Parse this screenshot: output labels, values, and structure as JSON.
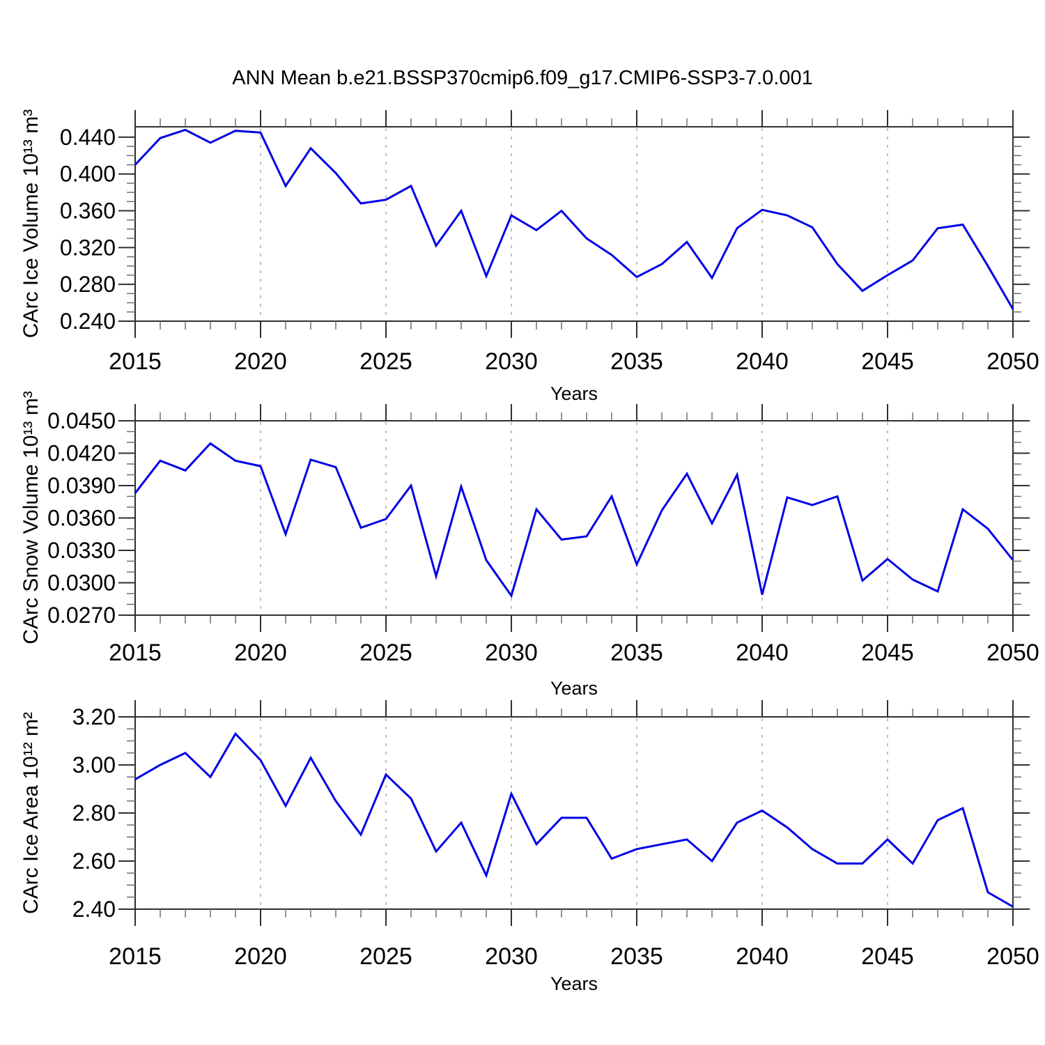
{
  "title": "ANN Mean b.e21.BSSP370cmip6.f09_g17.CMIP6-SSP3-7.0.001",
  "line_color": "#0000e8",
  "grid_color": "#a8a8a8",
  "axis_color": "#2f2f2f",
  "minor_tick_color": "#6e6e6e",
  "chart_data": [
    {
      "id": "ice-volume",
      "type": "line",
      "xlabel": "Years",
      "ylabel": "CArc Ice Volume 10¹³ m³",
      "x": [
        2015,
        2016,
        2017,
        2018,
        2019,
        2020,
        2021,
        2022,
        2023,
        2024,
        2025,
        2026,
        2027,
        2028,
        2029,
        2030,
        2031,
        2032,
        2033,
        2034,
        2035,
        2036,
        2037,
        2038,
        2039,
        2040,
        2041,
        2042,
        2043,
        2044,
        2045,
        2046,
        2047,
        2048,
        2049,
        2050
      ],
      "values": [
        0.41,
        0.439,
        0.448,
        0.434,
        0.447,
        0.445,
        0.387,
        0.428,
        0.401,
        0.368,
        0.372,
        0.387,
        0.322,
        0.36,
        0.289,
        0.355,
        0.339,
        0.36,
        0.33,
        0.312,
        0.288,
        0.302,
        0.326,
        0.287,
        0.341,
        0.361,
        0.355,
        0.342,
        0.302,
        0.273,
        0.29,
        0.306,
        0.341,
        0.345,
        0.3,
        0.253
      ],
      "ylim": [
        0.24,
        0.4513
      ],
      "y_ticks": [
        0.24,
        0.28,
        0.32,
        0.36,
        0.4,
        0.44
      ],
      "y_tick_labels": [
        "0.240",
        "0.280",
        "0.320",
        "0.360",
        "0.400",
        "0.440"
      ],
      "y_minor_step": 0.01,
      "xlim": [
        2015,
        2050
      ],
      "x_ticks": [
        2015,
        2020,
        2025,
        2030,
        2035,
        2040,
        2045,
        2050
      ],
      "x_tick_labels": [
        "2015",
        "2020",
        "2025",
        "2030",
        "2035",
        "2040",
        "2045",
        "2050"
      ],
      "x_minor_step": 1,
      "x_grid": [
        2020,
        2025,
        2030,
        2035,
        2040,
        2045
      ],
      "grid": "vertical-dashed",
      "legend": "none"
    },
    {
      "id": "snow-volume",
      "type": "line",
      "xlabel": "Years",
      "ylabel": "CArc Snow Volume 10¹³ m³",
      "x": [
        2015,
        2016,
        2017,
        2018,
        2019,
        2020,
        2021,
        2022,
        2023,
        2024,
        2025,
        2026,
        2027,
        2028,
        2029,
        2030,
        2031,
        2032,
        2033,
        2034,
        2035,
        2036,
        2037,
        2038,
        2039,
        2040,
        2041,
        2042,
        2043,
        2044,
        2045,
        2046,
        2047,
        2048,
        2049,
        2050
      ],
      "values": [
        0.0383,
        0.0413,
        0.0404,
        0.0429,
        0.0413,
        0.0408,
        0.0345,
        0.0414,
        0.0407,
        0.0351,
        0.0359,
        0.039,
        0.0306,
        0.0389,
        0.0321,
        0.0288,
        0.0368,
        0.034,
        0.0343,
        0.038,
        0.0317,
        0.0367,
        0.0401,
        0.0355,
        0.04,
        0.0289,
        0.0379,
        0.0372,
        0.038,
        0.0302,
        0.0322,
        0.0303,
        0.0292,
        0.0368,
        0.035,
        0.0321
      ],
      "ylim": [
        0.027,
        0.045
      ],
      "y_ticks": [
        0.027,
        0.03,
        0.033,
        0.036,
        0.039,
        0.042,
        0.045
      ],
      "y_tick_labels": [
        "0.0270",
        "0.0300",
        "0.0330",
        "0.0360",
        "0.0390",
        "0.0420",
        "0.0450"
      ],
      "y_minor_step": 0.001,
      "xlim": [
        2015,
        2050
      ],
      "x_ticks": [
        2015,
        2020,
        2025,
        2030,
        2035,
        2040,
        2045,
        2050
      ],
      "x_tick_labels": [
        "2015",
        "2020",
        "2025",
        "2030",
        "2035",
        "2040",
        "2045",
        "2050"
      ],
      "x_minor_step": 1,
      "x_grid": [
        2020,
        2025,
        2030,
        2035,
        2040,
        2045
      ],
      "grid": "vertical-dashed",
      "legend": "none"
    },
    {
      "id": "ice-area",
      "type": "line",
      "xlabel": "Years",
      "ylabel": "CArc Ice Area 10¹² m²",
      "x": [
        2015,
        2016,
        2017,
        2018,
        2019,
        2020,
        2021,
        2022,
        2023,
        2024,
        2025,
        2026,
        2027,
        2028,
        2029,
        2030,
        2031,
        2032,
        2033,
        2034,
        2035,
        2036,
        2037,
        2038,
        2039,
        2040,
        2041,
        2042,
        2043,
        2044,
        2045,
        2046,
        2047,
        2048,
        2049,
        2050
      ],
      "values": [
        2.94,
        3.0,
        3.05,
        2.95,
        3.13,
        3.02,
        2.83,
        3.03,
        2.85,
        2.71,
        2.96,
        2.86,
        2.64,
        2.76,
        2.54,
        2.88,
        2.67,
        2.78,
        2.78,
        2.61,
        2.65,
        2.67,
        2.69,
        2.6,
        2.76,
        2.81,
        2.74,
        2.65,
        2.59,
        2.59,
        2.69,
        2.59,
        2.77,
        2.82,
        2.47,
        2.41
      ],
      "ylim": [
        2.4,
        3.2
      ],
      "y_ticks": [
        2.4,
        2.6,
        2.8,
        3.0,
        3.2
      ],
      "y_tick_labels": [
        "2.40",
        "2.60",
        "2.80",
        "3.00",
        "3.20"
      ],
      "y_minor_step": 0.05,
      "xlim": [
        2015,
        2050
      ],
      "x_ticks": [
        2015,
        2020,
        2025,
        2030,
        2035,
        2040,
        2045,
        2050
      ],
      "x_tick_labels": [
        "2015",
        "2020",
        "2025",
        "2030",
        "2035",
        "2040",
        "2045",
        "2050"
      ],
      "x_minor_step": 1,
      "x_grid": [
        2020,
        2025,
        2030,
        2035,
        2040,
        2045
      ],
      "grid": "vertical-dashed",
      "legend": "none"
    }
  ]
}
